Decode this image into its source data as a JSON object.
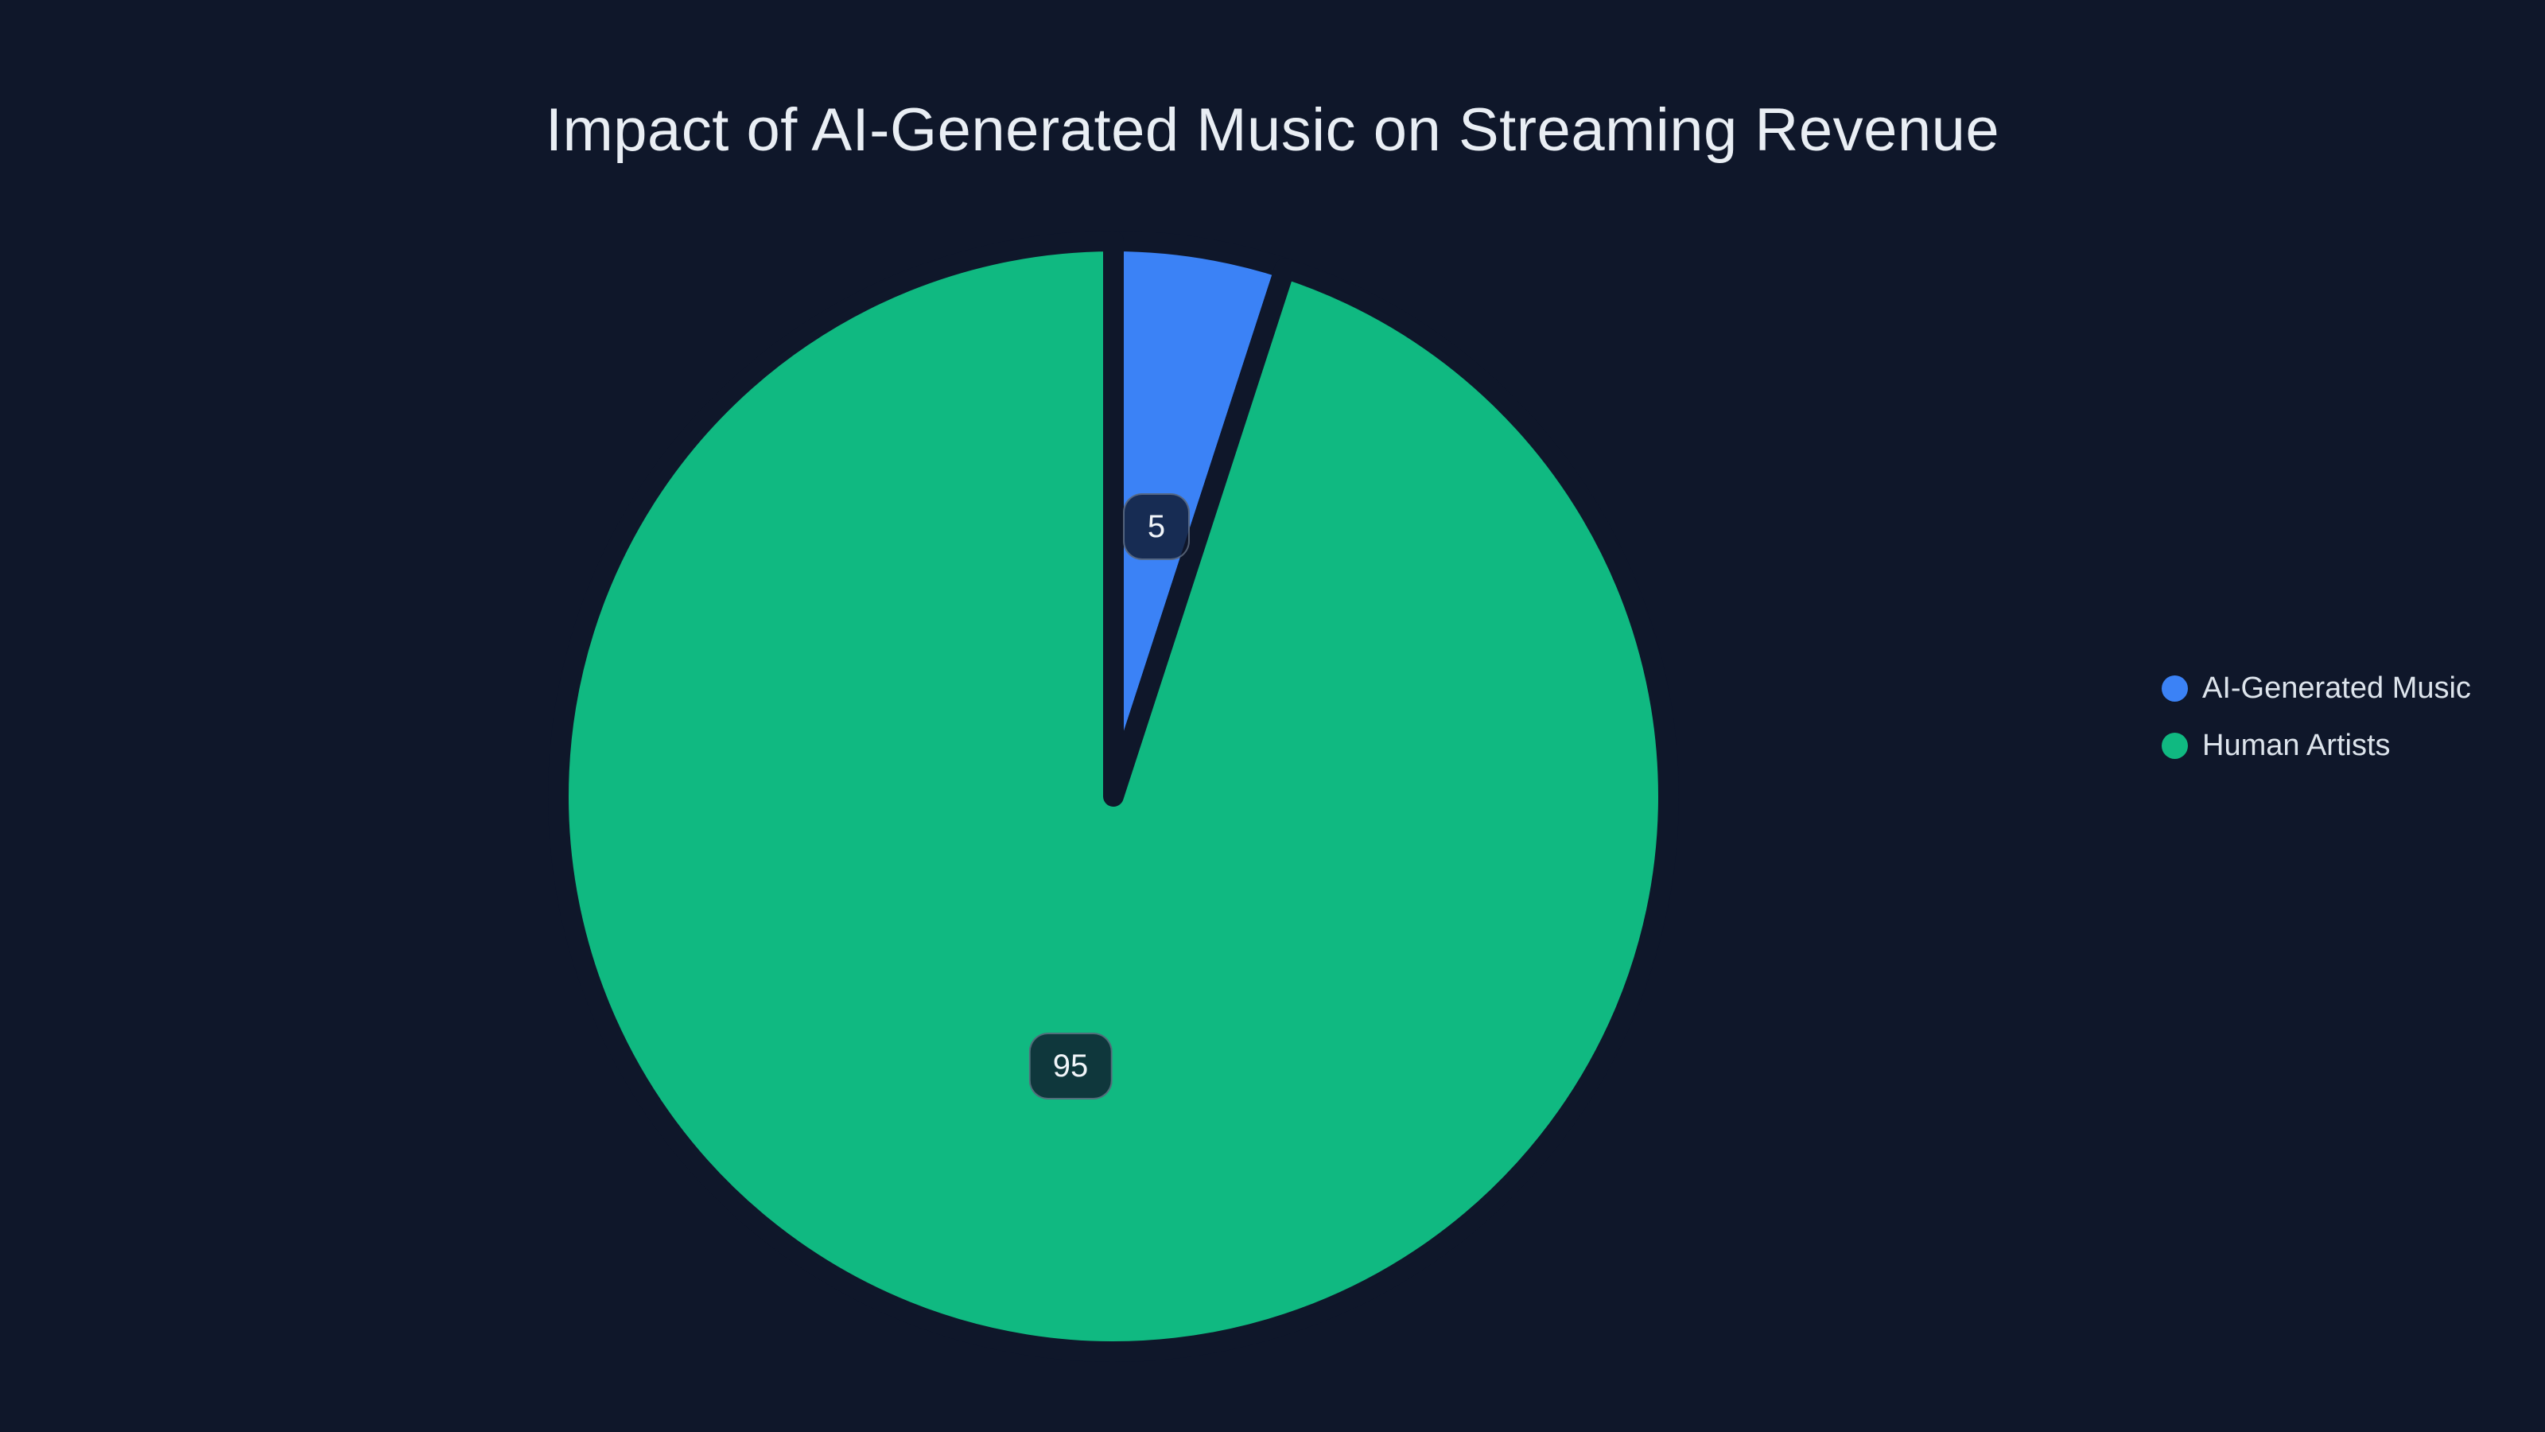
{
  "colors": {
    "background": "#0f172a",
    "title_text": "#e9eef4",
    "legend_text": "#dde4ec",
    "label_text": "#f1f5f9",
    "label_box_bg": "rgba(15,23,42,0.8)",
    "label_box_border": "rgba(148,163,184,0.5)"
  },
  "chart_data": {
    "type": "pie",
    "title": "Impact of AI-Generated Music on Streaming Revenue",
    "legend_position": "right",
    "start_angle_deg": 0,
    "direction": "clockwise",
    "total": 100,
    "slices": [
      {
        "label": "AI-Generated Music",
        "value": 5,
        "data_label": "5",
        "color": "#3b82f6"
      },
      {
        "label": "Human Artists",
        "value": 95,
        "data_label": "95",
        "color": "#10b981"
      }
    ]
  }
}
